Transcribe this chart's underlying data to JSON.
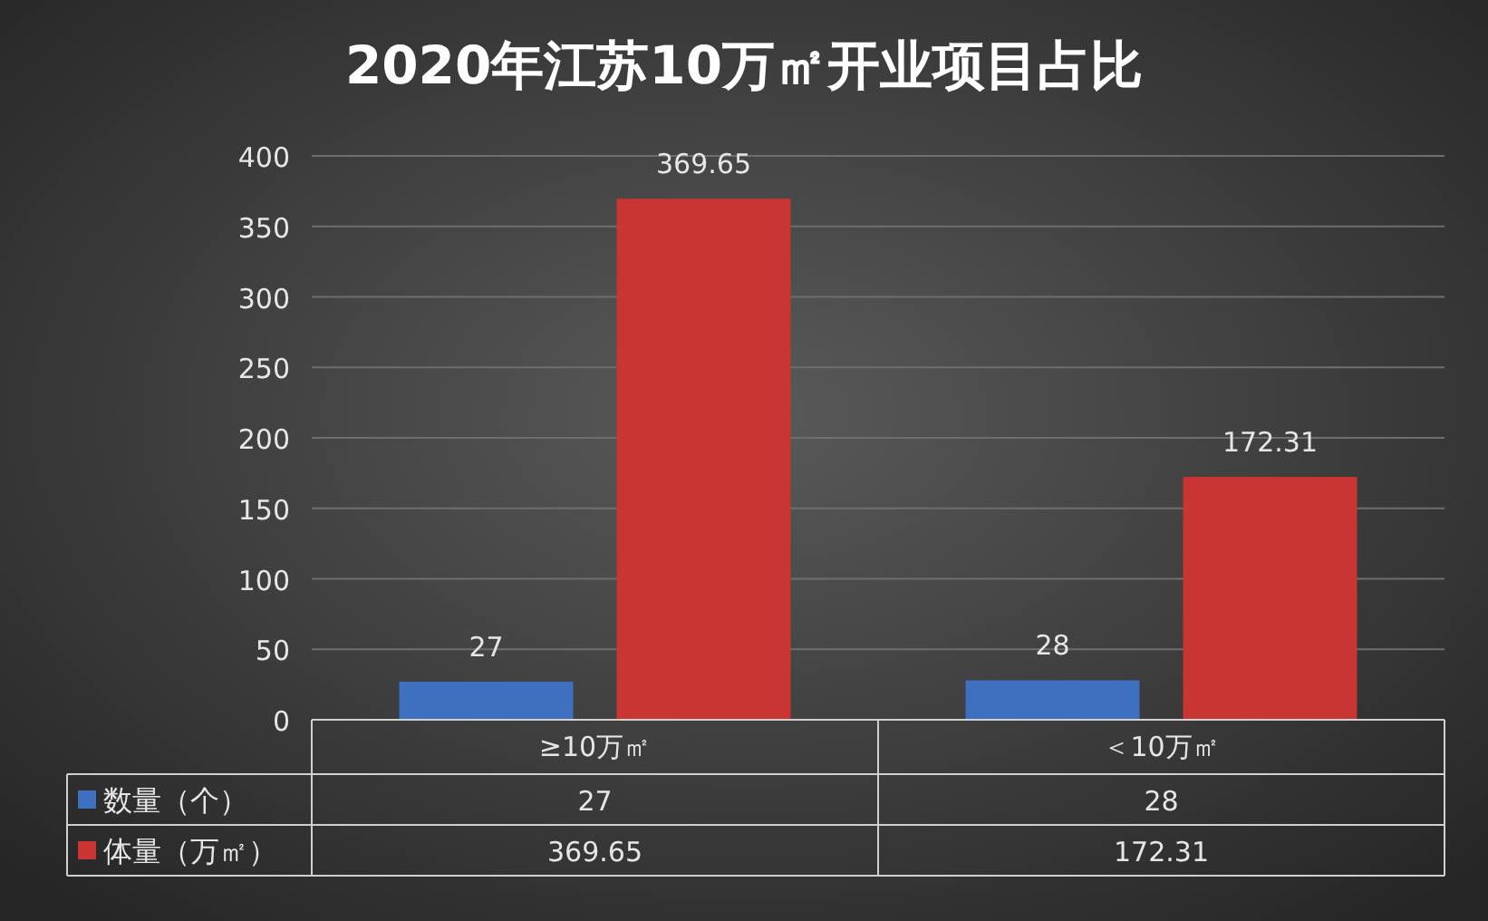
{
  "chart_data": {
    "type": "bar",
    "title": "2020年江苏10万㎡开业项目占比",
    "categories": [
      "≥10万㎡",
      "＜10万㎡"
    ],
    "series": [
      {
        "name": "数量（个）",
        "color": "#3f6fbf",
        "values": [
          27,
          28
        ],
        "value_labels": [
          "27",
          "28"
        ]
      },
      {
        "name": "体量（万㎡）",
        "color": "#c83532",
        "values": [
          369.65,
          172.31
        ],
        "value_labels": [
          "369.65",
          "172.31"
        ]
      }
    ],
    "annotations": [
      "27",
      "28",
      "369.65",
      "172.31"
    ],
    "ylim": [
      0,
      400
    ],
    "yticks": [
      0,
      50,
      100,
      150,
      200,
      250,
      300,
      350,
      400
    ],
    "grid": "y",
    "legend": "bottom"
  }
}
